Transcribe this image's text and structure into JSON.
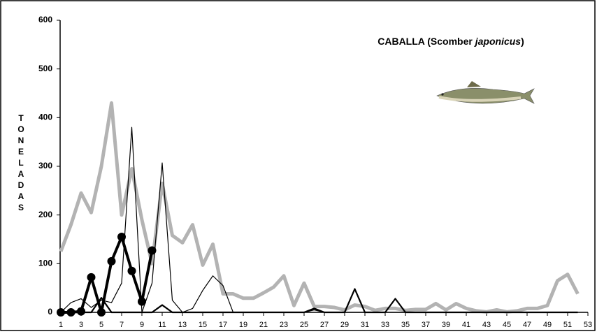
{
  "chart_data": {
    "type": "line",
    "title": [
      "CABALLA (Scomber ",
      "japonicus",
      ")"
    ],
    "y_label": [
      "T",
      "O",
      "N",
      "E",
      "L",
      "A",
      "D",
      "A",
      "S"
    ],
    "x": [
      1,
      2,
      3,
      4,
      5,
      6,
      7,
      8,
      9,
      10,
      11,
      12,
      13,
      14,
      15,
      16,
      17,
      18,
      19,
      20,
      21,
      22,
      23,
      24,
      25,
      26,
      27,
      28,
      29,
      30,
      31,
      32,
      33,
      34,
      35,
      36,
      37,
      38,
      39,
      40,
      41,
      42,
      43,
      44,
      45,
      46,
      47,
      48,
      49,
      50,
      51,
      52
    ],
    "xlim": [
      1,
      53
    ],
    "xticks": [
      1,
      3,
      5,
      7,
      9,
      11,
      13,
      15,
      17,
      19,
      21,
      23,
      25,
      27,
      29,
      31,
      33,
      35,
      37,
      39,
      41,
      43,
      45,
      47,
      49,
      51,
      53
    ],
    "ylim": [
      0,
      600
    ],
    "yticks": [
      0,
      100,
      200,
      300,
      400,
      500,
      600
    ],
    "series": [
      {
        "color": "#b3b3b3",
        "width": 5,
        "markers": false,
        "values": [
          125,
          180,
          245,
          205,
          300,
          430,
          200,
          295,
          190,
          100,
          265,
          158,
          143,
          180,
          97,
          140,
          38,
          38,
          29,
          29,
          40,
          52,
          75,
          14,
          60,
          12,
          12,
          10,
          5,
          15,
          12,
          4,
          8,
          8,
          4,
          6,
          6,
          18,
          5,
          18,
          8,
          3,
          1,
          5,
          1,
          3,
          8,
          8,
          14,
          65,
          78,
          38
        ]
      },
      {
        "color": "#000000",
        "width": 1.2,
        "markers": false,
        "values": [
          0,
          20,
          28,
          10,
          25,
          20,
          60,
          380,
          0,
          60,
          307,
          25,
          0,
          8,
          45,
          75,
          55,
          0,
          0,
          0,
          0,
          0,
          0,
          0,
          0,
          5,
          0,
          0,
          0,
          0,
          0,
          0,
          0,
          0,
          0,
          0,
          0,
          0,
          0,
          0,
          0,
          0,
          0,
          0,
          0,
          0,
          0,
          0,
          0,
          0,
          0,
          0
        ]
      },
      {
        "color": "#000000",
        "width": 2.2,
        "markers": false,
        "values": [
          0,
          0,
          0,
          0,
          30,
          0,
          0,
          0,
          0,
          0,
          15,
          0,
          0,
          0,
          0,
          0,
          0,
          0,
          0,
          0,
          0,
          0,
          0,
          0,
          0,
          8,
          0,
          0,
          0,
          48,
          0,
          0,
          0,
          28,
          0,
          0,
          0,
          0,
          0,
          0,
          0,
          0,
          0,
          0,
          0,
          0,
          0,
          0,
          0,
          0,
          0,
          0
        ]
      },
      {
        "color": "#000000",
        "width": 4,
        "markers": true,
        "values": [
          0,
          0,
          2,
          72,
          0,
          105,
          155,
          85,
          22,
          127,
          null,
          null,
          null,
          null,
          null,
          null,
          null,
          null,
          null,
          null,
          null,
          null,
          null,
          null,
          null,
          null,
          null,
          null,
          null,
          null,
          null,
          null,
          null,
          null,
          null,
          null,
          null,
          null,
          null,
          null,
          null,
          null,
          null,
          null,
          null,
          null,
          null,
          null,
          null,
          null,
          null,
          null
        ]
      }
    ]
  }
}
